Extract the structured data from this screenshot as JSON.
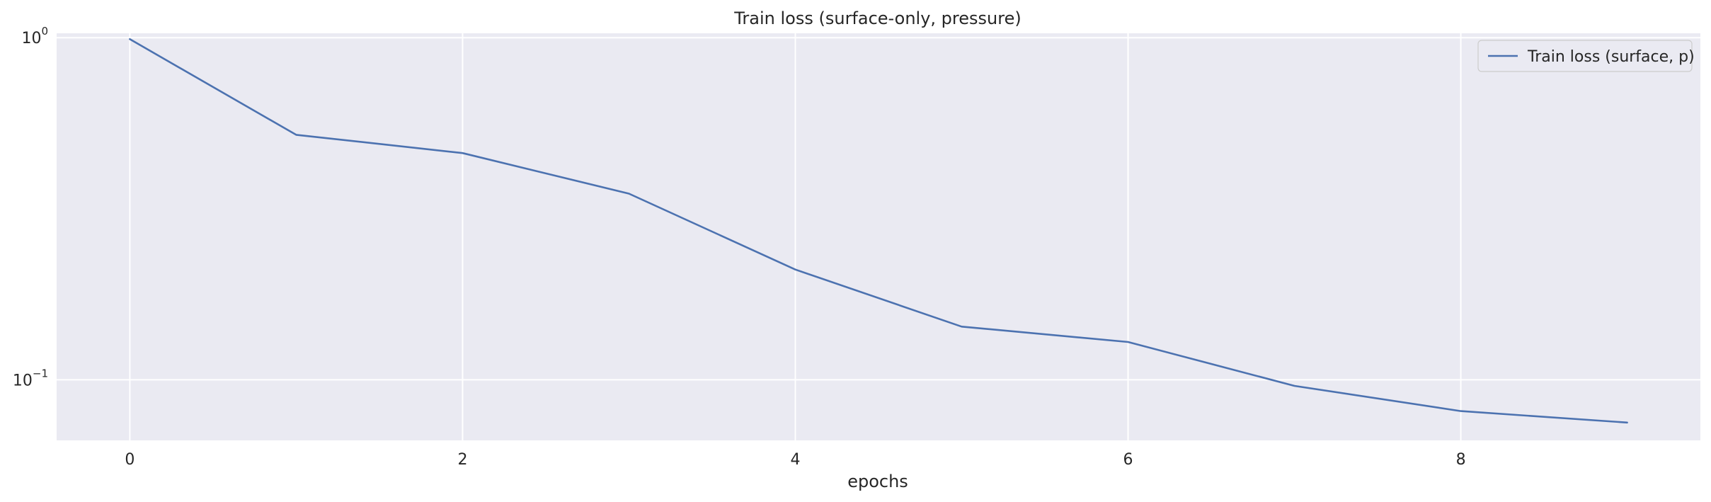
{
  "chart_data": {
    "type": "line",
    "title": "Train loss (surface-only, pressure)",
    "xlabel": "epochs",
    "ylabel": "",
    "x": [
      0,
      1,
      2,
      3,
      4,
      5,
      6,
      7,
      8,
      9
    ],
    "series": [
      {
        "name": "Train loss (surface, p)",
        "values": [
          0.99,
          0.52,
          0.46,
          0.35,
          0.21,
          0.143,
          0.129,
          0.096,
          0.081,
          0.075
        ],
        "color": "#4c72b0"
      }
    ],
    "xlim": [
      -0.44,
      9.44
    ],
    "ylim": [
      0.0665,
      1.03
    ],
    "yscale": "log",
    "x_ticks": [
      0,
      2,
      4,
      6,
      8
    ],
    "y_ticks": [
      {
        "value": 1,
        "base": "10",
        "exp": "0"
      },
      {
        "value": 0.1,
        "base": "10",
        "exp": "−1"
      }
    ],
    "grid": true,
    "legend_position": "top-right",
    "background": "#eaeaf2",
    "grid_color": "#ffffff",
    "text_color": "#262626"
  }
}
